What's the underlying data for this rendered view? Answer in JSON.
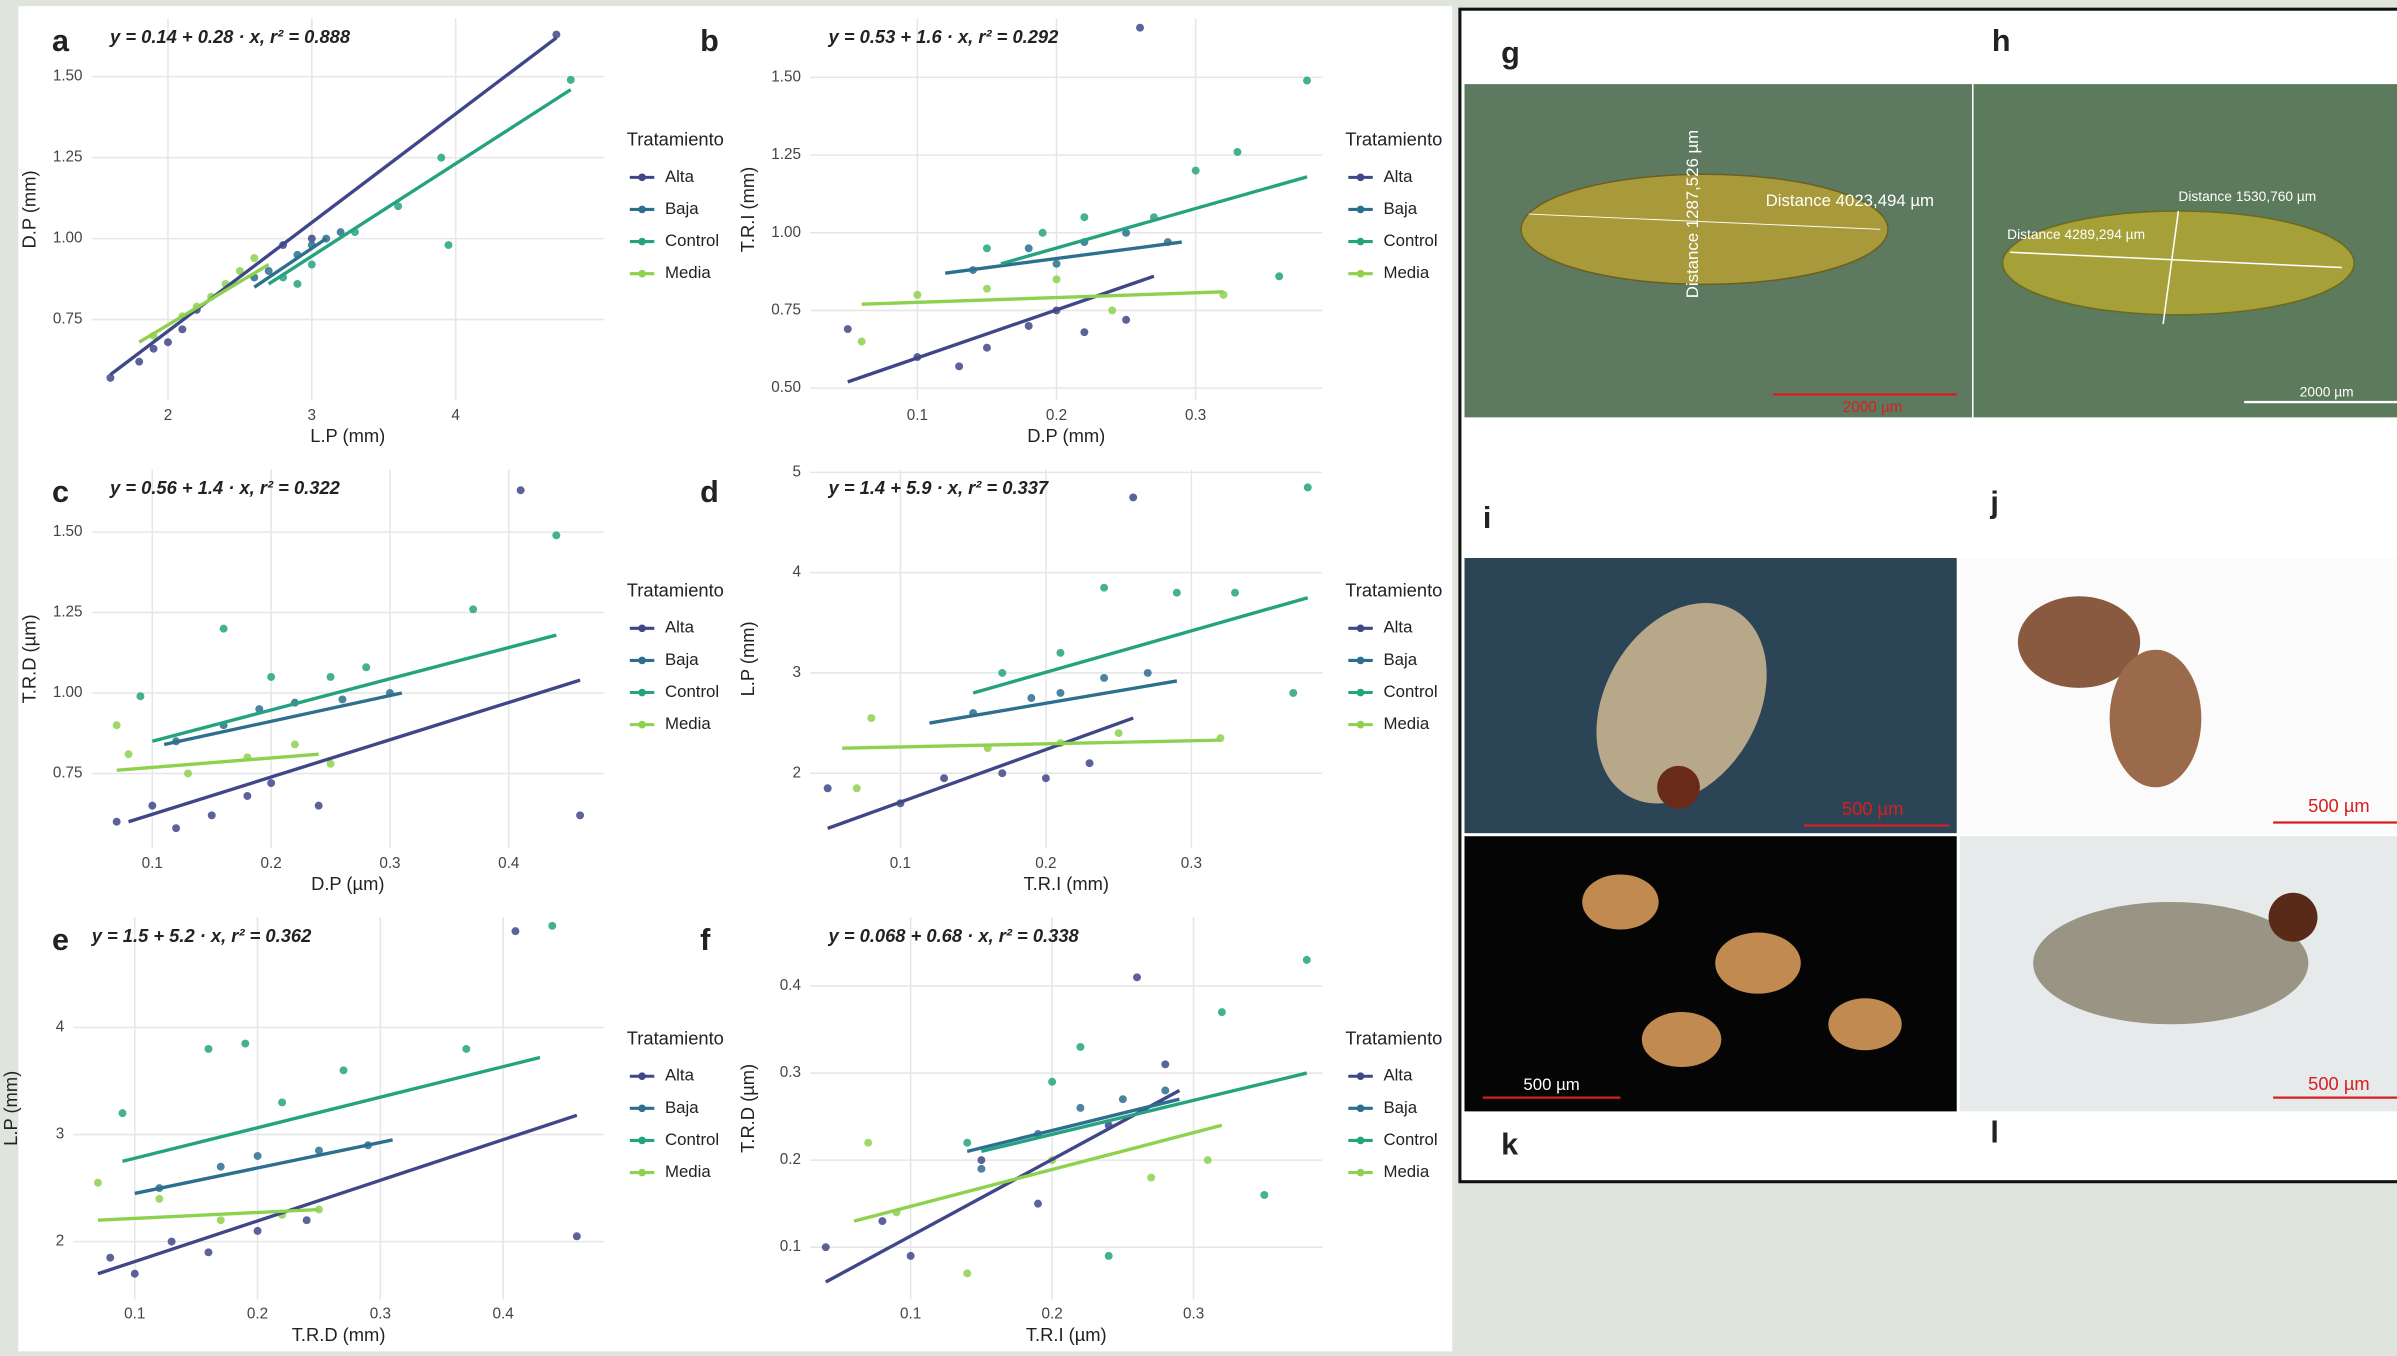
{
  "chart_data": [
    {
      "type": "scatter",
      "panel": "a",
      "equation": "y = 0.14 + 0.28 · x,  r² = 0.888",
      "x_label": "L.P (mm)",
      "y_label": "D.P (mm)",
      "legend_title": "Tratamiento",
      "grid": true,
      "xlim": [
        1.47,
        5.03
      ],
      "ylim": [
        0.5,
        1.68
      ],
      "xticks": [
        2,
        3,
        4
      ],
      "yticks": [
        0.75,
        {
          "value": 1,
          "label": "1.00"
        },
        1.25,
        {
          "value": 1.5,
          "label": "1.50"
        }
      ],
      "series": [
        {
          "name": "Alta",
          "color": "#3f4788",
          "x": [
            1.6,
            1.8,
            1.9,
            2.0,
            2.1,
            2.2,
            2.8,
            3.0,
            4.7
          ],
          "values": [
            0.57,
            0.62,
            0.66,
            0.68,
            0.72,
            0.78,
            0.98,
            1.0,
            1.63
          ],
          "fit_x": [
            1.6,
            4.7
          ],
          "fit_y": [
            0.58,
            1.62
          ]
        },
        {
          "name": "Baja",
          "color": "#2c6f8e",
          "x": [
            2.6,
            2.7,
            2.9,
            3.0,
            3.1,
            3.2
          ],
          "values": [
            0.88,
            0.9,
            0.95,
            0.98,
            1.0,
            1.02
          ],
          "fit_x": [
            2.6,
            3.1
          ],
          "fit_y": [
            0.85,
            1.0
          ]
        },
        {
          "name": "Control",
          "color": "#25a27f",
          "x": [
            2.8,
            2.9,
            3.0,
            3.3,
            3.6,
            3.9,
            3.95,
            4.8
          ],
          "values": [
            0.88,
            0.86,
            0.92,
            1.02,
            1.1,
            1.25,
            0.98,
            1.49
          ],
          "fit_x": [
            2.7,
            4.8
          ],
          "fit_y": [
            0.86,
            1.46
          ]
        },
        {
          "name": "Media",
          "color": "#8dd14f",
          "x": [
            1.9,
            2.1,
            2.2,
            2.3,
            2.4,
            2.5,
            2.6
          ],
          "values": [
            0.7,
            0.76,
            0.79,
            0.82,
            0.86,
            0.9,
            0.94
          ],
          "fit_x": [
            1.8,
            2.7
          ],
          "fit_y": [
            0.68,
            0.92
          ]
        }
      ]
    },
    {
      "type": "scatter",
      "panel": "b",
      "equation": "y = 0.53 + 1.6 · x,  r² = 0.292",
      "x_label": "D.P (mm)",
      "y_label": "T.R.I (mm)",
      "legend_title": "Tratamiento",
      "grid": true,
      "xlim": [
        0.023,
        0.391
      ],
      "ylim": [
        0.46,
        1.69
      ],
      "xticks": [
        0.1,
        0.2,
        0.3
      ],
      "yticks": [
        {
          "value": 0.5,
          "label": "0.50"
        },
        0.75,
        {
          "value": 1,
          "label": "1.00"
        },
        1.25,
        {
          "value": 1.5,
          "label": "1.50"
        }
      ],
      "series": [
        {
          "name": "Alta",
          "color": "#3f4788",
          "x": [
            0.05,
            0.1,
            0.13,
            0.15,
            0.18,
            0.2,
            0.22,
            0.25,
            0.26
          ],
          "values": [
            0.69,
            0.6,
            0.57,
            0.63,
            0.7,
            0.75,
            0.68,
            0.72,
            1.66
          ],
          "fit_x": [
            0.05,
            0.27
          ],
          "fit_y": [
            0.52,
            0.86
          ]
        },
        {
          "name": "Baja",
          "color": "#2c6f8e",
          "x": [
            0.14,
            0.18,
            0.2,
            0.22,
            0.25,
            0.28
          ],
          "values": [
            0.88,
            0.95,
            0.9,
            0.97,
            1.0,
            0.97
          ],
          "fit_x": [
            0.12,
            0.29
          ],
          "fit_y": [
            0.87,
            0.97
          ]
        },
        {
          "name": "Control",
          "color": "#25a27f",
          "x": [
            0.15,
            0.19,
            0.22,
            0.27,
            0.3,
            0.33,
            0.36,
            0.38
          ],
          "values": [
            0.95,
            1.0,
            1.05,
            1.05,
            1.2,
            1.26,
            0.86,
            1.49
          ],
          "fit_x": [
            0.16,
            0.38
          ],
          "fit_y": [
            0.9,
            1.18
          ]
        },
        {
          "name": "Media",
          "color": "#8dd14f",
          "x": [
            0.06,
            0.1,
            0.15,
            0.2,
            0.24,
            0.32
          ],
          "values": [
            0.65,
            0.8,
            0.82,
            0.85,
            0.75,
            0.8
          ],
          "fit_x": [
            0.06,
            0.32
          ],
          "fit_y": [
            0.77,
            0.81
          ]
        }
      ]
    },
    {
      "type": "scatter",
      "panel": "c",
      "equation": "y = 0.56 + 1.4 · x,  r² = 0.322",
      "x_label": "D.P (µm)",
      "y_label": "T.R.D (µm)",
      "legend_title": "Tratamiento",
      "grid": true,
      "xlim": [
        0.049,
        0.48
      ],
      "ylim": [
        0.517,
        1.695
      ],
      "xticks": [
        0.1,
        0.2,
        0.3,
        0.4
      ],
      "yticks": [
        0.75,
        {
          "value": 1,
          "label": "1.00"
        },
        1.25,
        {
          "value": 1.5,
          "label": "1.50"
        }
      ],
      "series": [
        {
          "name": "Alta",
          "color": "#3f4788",
          "x": [
            0.07,
            0.1,
            0.12,
            0.15,
            0.18,
            0.2,
            0.24,
            0.41,
            0.46
          ],
          "values": [
            0.6,
            0.65,
            0.58,
            0.62,
            0.68,
            0.72,
            0.65,
            1.63,
            0.62
          ],
          "fit_x": [
            0.08,
            0.46
          ],
          "fit_y": [
            0.6,
            1.04
          ]
        },
        {
          "name": "Baja",
          "color": "#2c6f8e",
          "x": [
            0.12,
            0.16,
            0.19,
            0.22,
            0.26,
            0.3
          ],
          "values": [
            0.85,
            0.9,
            0.95,
            0.97,
            0.98,
            1.0
          ],
          "fit_x": [
            0.11,
            0.31
          ],
          "fit_y": [
            0.84,
            1.0
          ]
        },
        {
          "name": "Control",
          "color": "#25a27f",
          "x": [
            0.09,
            0.16,
            0.2,
            0.25,
            0.28,
            0.37,
            0.44
          ],
          "values": [
            0.99,
            1.2,
            1.05,
            1.05,
            1.08,
            1.26,
            1.49
          ],
          "fit_x": [
            0.1,
            0.44
          ],
          "fit_y": [
            0.85,
            1.18
          ]
        },
        {
          "name": "Media",
          "color": "#8dd14f",
          "x": [
            0.07,
            0.08,
            0.13,
            0.18,
            0.22,
            0.25
          ],
          "values": [
            0.9,
            0.81,
            0.75,
            0.8,
            0.84,
            0.78
          ],
          "fit_x": [
            0.07,
            0.24
          ],
          "fit_y": [
            0.76,
            0.81
          ]
        }
      ]
    },
    {
      "type": "scatter",
      "panel": "d",
      "equation": "y = 1.4 + 5.9 · x,  r² = 0.337",
      "x_label": "T.R.I (mm)",
      "y_label": "L.P (mm)",
      "legend_title": "Tratamiento",
      "grid": true,
      "xlim": [
        0.038,
        0.39
      ],
      "ylim": [
        1.25,
        5.03
      ],
      "xticks": [
        0.1,
        0.2,
        0.3
      ],
      "yticks": [
        2,
        3,
        4,
        5
      ],
      "series": [
        {
          "name": "Alta",
          "color": "#3f4788",
          "x": [
            0.05,
            0.1,
            0.13,
            0.17,
            0.2,
            0.23,
            0.26
          ],
          "values": [
            1.85,
            1.7,
            1.95,
            2.0,
            1.95,
            2.1,
            4.75
          ],
          "fit_x": [
            0.05,
            0.26
          ],
          "fit_y": [
            1.45,
            2.55
          ]
        },
        {
          "name": "Baja",
          "color": "#2c6f8e",
          "x": [
            0.15,
            0.19,
            0.21,
            0.24,
            0.27
          ],
          "values": [
            2.6,
            2.75,
            2.8,
            2.95,
            3.0
          ],
          "fit_x": [
            0.12,
            0.29
          ],
          "fit_y": [
            2.5,
            2.92
          ]
        },
        {
          "name": "Control",
          "color": "#25a27f",
          "x": [
            0.17,
            0.21,
            0.24,
            0.29,
            0.33,
            0.37,
            0.38
          ],
          "values": [
            3.0,
            3.2,
            3.85,
            3.8,
            3.8,
            2.8,
            4.85
          ],
          "fit_x": [
            0.15,
            0.38
          ],
          "fit_y": [
            2.8,
            3.75
          ]
        },
        {
          "name": "Media",
          "color": "#8dd14f",
          "x": [
            0.07,
            0.08,
            0.16,
            0.21,
            0.25,
            0.32
          ],
          "values": [
            1.85,
            2.55,
            2.25,
            2.3,
            2.4,
            2.35
          ],
          "fit_x": [
            0.06,
            0.32
          ],
          "fit_y": [
            2.25,
            2.33
          ]
        }
      ]
    },
    {
      "type": "scatter",
      "panel": "e",
      "equation": "y = 1.5 + 5.2 · x,  r² = 0.362",
      "x_label": "T.R.D (mm)",
      "y_label": "L.P (mm)",
      "legend_title": "Tratamiento",
      "grid": true,
      "xlim": [
        0.05,
        0.482
      ],
      "ylim": [
        1.46,
        5.03
      ],
      "xticks": [
        0.1,
        0.2,
        0.3,
        0.4
      ],
      "yticks": [
        2,
        3,
        4
      ],
      "series": [
        {
          "name": "Alta",
          "color": "#3f4788",
          "x": [
            0.08,
            0.1,
            0.13,
            0.16,
            0.2,
            0.24,
            0.41,
            0.46
          ],
          "values": [
            1.85,
            1.7,
            2.0,
            1.9,
            2.1,
            2.2,
            4.9,
            2.05
          ],
          "fit_x": [
            0.07,
            0.46
          ],
          "fit_y": [
            1.7,
            3.18
          ]
        },
        {
          "name": "Baja",
          "color": "#2c6f8e",
          "x": [
            0.12,
            0.17,
            0.2,
            0.25,
            0.29
          ],
          "values": [
            2.5,
            2.7,
            2.8,
            2.85,
            2.9
          ],
          "fit_x": [
            0.1,
            0.31
          ],
          "fit_y": [
            2.45,
            2.95
          ]
        },
        {
          "name": "Control",
          "color": "#25a27f",
          "x": [
            0.09,
            0.16,
            0.19,
            0.22,
            0.27,
            0.37,
            0.44
          ],
          "values": [
            3.2,
            3.8,
            3.85,
            3.3,
            3.6,
            3.8,
            4.95
          ],
          "fit_x": [
            0.09,
            0.43
          ],
          "fit_y": [
            2.75,
            3.72
          ]
        },
        {
          "name": "Media",
          "color": "#8dd14f",
          "x": [
            0.07,
            0.12,
            0.17,
            0.22,
            0.25
          ],
          "values": [
            2.55,
            2.4,
            2.2,
            2.25,
            2.3
          ],
          "fit_x": [
            0.07,
            0.25
          ],
          "fit_y": [
            2.2,
            2.3
          ]
        }
      ]
    },
    {
      "type": "scatter",
      "panel": "f",
      "equation": "y = 0.068 + 0.68 · x,  r² = 0.338",
      "x_label": "T.R.I (µm)",
      "y_label": "T.R.D (µm)",
      "legend_title": "Tratamiento",
      "grid": true,
      "xlim": [
        0.029,
        0.391
      ],
      "ylim": [
        0.04,
        0.479
      ],
      "xticks": [
        0.1,
        0.2,
        0.3
      ],
      "yticks": [
        0.1,
        0.2,
        0.3,
        0.4
      ],
      "series": [
        {
          "name": "Alta",
          "color": "#3f4788",
          "x": [
            0.04,
            0.08,
            0.1,
            0.15,
            0.19,
            0.24,
            0.26,
            0.28
          ],
          "values": [
            0.1,
            0.13,
            0.09,
            0.2,
            0.15,
            0.24,
            0.41,
            0.31
          ],
          "fit_x": [
            0.04,
            0.29
          ],
          "fit_y": [
            0.06,
            0.28
          ]
        },
        {
          "name": "Baja",
          "color": "#2c6f8e",
          "x": [
            0.15,
            0.19,
            0.22,
            0.25,
            0.28
          ],
          "values": [
            0.19,
            0.23,
            0.26,
            0.27,
            0.28
          ],
          "fit_x": [
            0.14,
            0.29
          ],
          "fit_y": [
            0.21,
            0.27
          ]
        },
        {
          "name": "Control",
          "color": "#25a27f",
          "x": [
            0.14,
            0.2,
            0.22,
            0.24,
            0.32,
            0.35,
            0.38
          ],
          "values": [
            0.22,
            0.29,
            0.33,
            0.09,
            0.37,
            0.16,
            0.43
          ],
          "fit_x": [
            0.15,
            0.38
          ],
          "fit_y": [
            0.21,
            0.3
          ]
        },
        {
          "name": "Media",
          "color": "#8dd14f",
          "x": [
            0.07,
            0.09,
            0.14,
            0.2,
            0.27,
            0.31
          ],
          "values": [
            0.22,
            0.14,
            0.07,
            0.2,
            0.18,
            0.2
          ],
          "fit_x": [
            0.06,
            0.32
          ],
          "fit_y": [
            0.13,
            0.24
          ]
        }
      ]
    }
  ],
  "photos": {
    "g": {
      "label": "g",
      "distance_length": "Distance 4023,494 µm",
      "distance_width": "Distance 1287,526 µm",
      "scale": "2000 µm"
    },
    "h": {
      "label": "h",
      "distance_width": "Distance 1530,760 µm",
      "distance_length": "Distance 4289,294 µm",
      "scale": "2000 µm"
    },
    "i": {
      "label": "i",
      "scale": "500 µm"
    },
    "j": {
      "label": "j",
      "scale": "500 µm"
    },
    "k": {
      "label": "k",
      "scale": "500 µm"
    },
    "l": {
      "label": "l",
      "scale": "500 µm"
    }
  }
}
